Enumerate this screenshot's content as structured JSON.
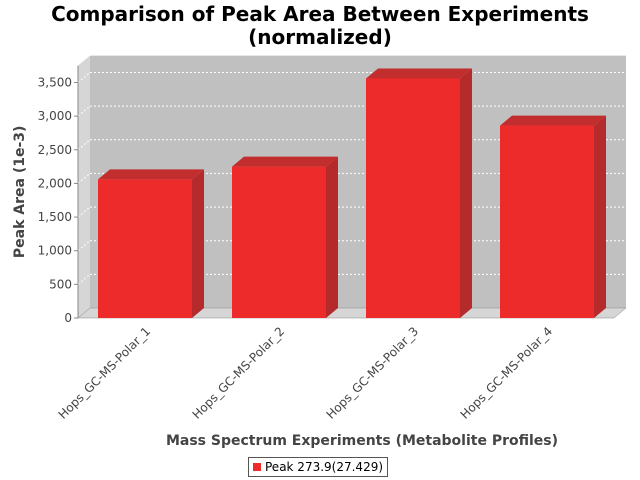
{
  "chart_data": {
    "type": "bar",
    "title": "Comparison of Peak Area Between Experiments\n(normalized)",
    "xlabel": "Mass Spectrum Experiments (Metabolite Profiles)",
    "ylabel": "Peak Area (1e-3)",
    "categories": [
      "Hops_GC-MS-Polar_1",
      "Hops_GC-MS-Polar_2",
      "Hops_GC-MS-Polar_3",
      "Hops_GC-MS-Polar_4"
    ],
    "series": [
      {
        "name": "Peak 273.9(27.429)",
        "values": [
          2060,
          2250,
          3560,
          2860
        ]
      }
    ],
    "ylim": [
      0,
      3750
    ],
    "yticks": [
      0,
      500,
      1000,
      1500,
      2000,
      2500,
      3000,
      3500
    ],
    "ytick_labels": [
      "0",
      "500",
      "1,000",
      "1,500",
      "2,000",
      "2,500",
      "3,000",
      "3,500"
    ],
    "grid": true,
    "legend_position": "bottom",
    "colors": {
      "bar": "#ee2b2b",
      "bar_side": "#b52a2a",
      "bar_top": "#c22d2d",
      "plot_bg": "#c0c0c0",
      "wall": "#d6d6d6"
    }
  }
}
